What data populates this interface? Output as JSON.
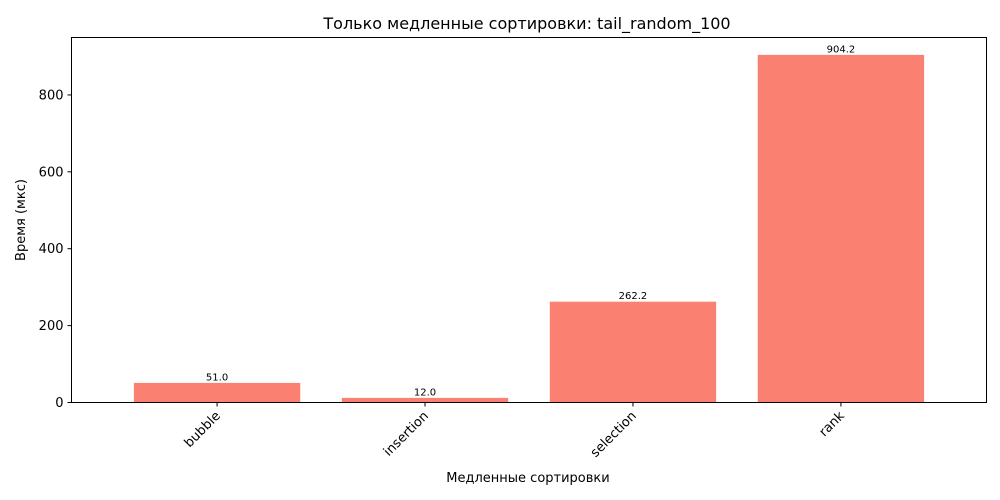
{
  "chart_data": {
    "type": "bar",
    "title": "Только медленные сортировки: tail_random_100",
    "xlabel": "Медленные сортировки",
    "ylabel": "Время (мкс)",
    "categories": [
      "bubble",
      "insertion",
      "selection",
      "rank"
    ],
    "values": [
      51.0,
      12.0,
      262.2,
      904.2
    ],
    "value_labels": [
      "51.0",
      "12.0",
      "262.2",
      "904.2"
    ],
    "ylim": [
      0,
      949.41
    ],
    "yticks": [
      0,
      200,
      400,
      600,
      800
    ],
    "ytick_labels": [
      "0",
      "200",
      "400",
      "600",
      "800"
    ],
    "grid": false,
    "bar_color": "#fa8072"
  }
}
